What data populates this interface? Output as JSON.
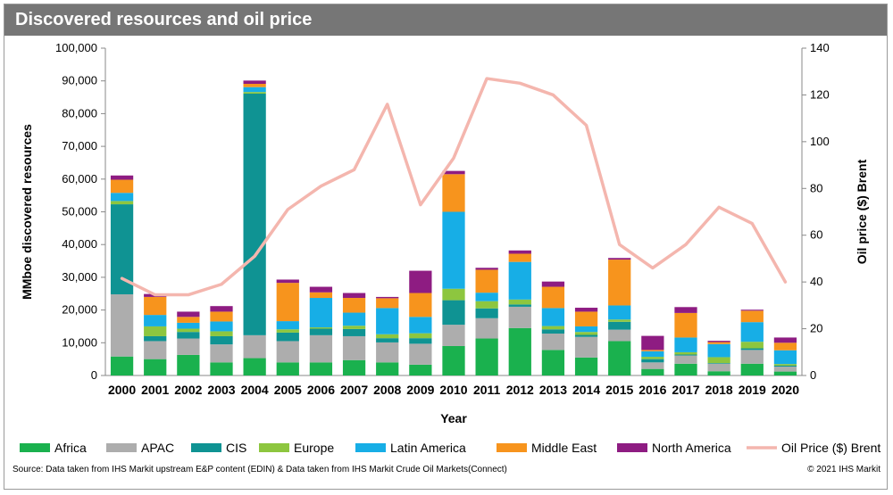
{
  "chart_data": {
    "type": "bar",
    "title": "Discovered resources and oil price",
    "xlabel": "Year",
    "ylabel": "MMboe discovered resources",
    "y2label": "Oil price ($) Brent",
    "ylim": [
      0,
      100000
    ],
    "y2lim": [
      0,
      140
    ],
    "yticks": [
      "0",
      "10,000",
      "20,000",
      "30,000",
      "40,000",
      "50,000",
      "60,000",
      "70,000",
      "80,000",
      "90,000",
      "100,000"
    ],
    "y2ticks": [
      "0",
      "20",
      "40",
      "60",
      "80",
      "100",
      "120",
      "140"
    ],
    "categories": [
      "2000",
      "2001",
      "2002",
      "2003",
      "2004",
      "2005",
      "2006",
      "2007",
      "2008",
      "2009",
      "2010",
      "2011",
      "2012",
      "2013",
      "2014",
      "2015",
      "2016",
      "2017",
      "2018",
      "2019",
      "2020"
    ],
    "series": [
      {
        "name": "Africa",
        "color": "#1ab14e",
        "values": [
          5800,
          5000,
          6300,
          4000,
          5300,
          4000,
          4000,
          4700,
          4000,
          3300,
          9000,
          11300,
          14500,
          7800,
          5500,
          10500,
          2000,
          3600,
          1300,
          3600,
          1200
        ]
      },
      {
        "name": "APAC",
        "color": "#adadad",
        "values": [
          19000,
          5500,
          5000,
          5500,
          7000,
          6500,
          8300,
          7300,
          6100,
          6400,
          6500,
          6200,
          6500,
          5000,
          6300,
          3500,
          2000,
          2500,
          2300,
          4200,
          1500
        ]
      },
      {
        "name": "CIS",
        "color": "#0f9393",
        "values": [
          27500,
          1500,
          2000,
          2500,
          73800,
          2600,
          2000,
          2200,
          1300,
          1700,
          7500,
          3000,
          700,
          1300,
          600,
          2400,
          1000,
          300,
          200,
          500,
          300
        ]
      },
      {
        "name": "Europe",
        "color": "#8dc63f",
        "values": [
          1000,
          3000,
          1000,
          1500,
          500,
          1000,
          400,
          1000,
          1200,
          1500,
          3500,
          2200,
          1500,
          1000,
          900,
          700,
          700,
          700,
          1800,
          2000,
          500
        ]
      },
      {
        "name": "Latin America",
        "color": "#17aee6",
        "values": [
          2500,
          3500,
          1800,
          3000,
          1500,
          2500,
          9000,
          4000,
          8000,
          5000,
          23500,
          2600,
          11500,
          5500,
          1700,
          4300,
          1700,
          4500,
          4000,
          6000,
          4200
        ]
      },
      {
        "name": "Middle East",
        "color": "#f7941d",
        "values": [
          4000,
          5500,
          1800,
          3000,
          1000,
          11700,
          1700,
          4500,
          3000,
          7300,
          11500,
          7000,
          2500,
          6500,
          4500,
          14000,
          400,
          7500,
          600,
          3500,
          2300
        ]
      },
      {
        "name": "North America",
        "color": "#8e1c82",
        "values": [
          1300,
          900,
          1600,
          1700,
          1000,
          1000,
          1700,
          1500,
          400,
          6800,
          1000,
          600,
          1000,
          1600,
          1200,
          500,
          4300,
          1800,
          400,
          300,
          1600
        ]
      }
    ],
    "line_series": {
      "name": "Oil Price ($) Brent",
      "color": "#f4b6ae",
      "axis": "y2",
      "values": [
        41.5,
        34.5,
        34.5,
        39,
        51,
        71,
        81,
        88,
        116,
        73,
        93,
        127,
        125,
        120,
        107,
        56,
        46,
        56,
        72,
        65,
        40
      ]
    },
    "legend_position": "bottom",
    "grid": false
  },
  "footer": {
    "source": "Source: Data taken from IHS Markit upstream E&P content (EDIN) & Data taken from IHS Markit Crude Oil Markets(Connect)",
    "copyright": "© 2021 IHS Markit"
  }
}
